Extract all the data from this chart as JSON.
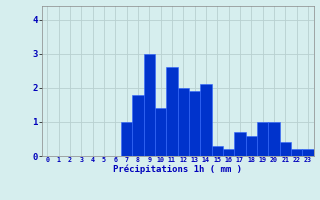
{
  "categories": [
    0,
    1,
    2,
    3,
    4,
    5,
    6,
    7,
    8,
    9,
    10,
    11,
    12,
    13,
    14,
    15,
    16,
    17,
    18,
    19,
    20,
    21,
    22,
    23
  ],
  "values": [
    0,
    0,
    0,
    0,
    0,
    0,
    0,
    1.0,
    1.8,
    3.0,
    1.4,
    2.6,
    2.0,
    1.9,
    2.1,
    0.3,
    0.2,
    0.7,
    0.6,
    1.0,
    1.0,
    0.4,
    0.2,
    0.2
  ],
  "bar_color": "#0033cc",
  "bar_edge_color": "#3366ff",
  "background_color": "#d6eeee",
  "grid_color": "#b8d0d0",
  "xlabel": "Précipitations 1h ( mm )",
  "xlabel_color": "#0000bb",
  "tick_color": "#0000bb",
  "axis_color": "#888888",
  "ylim": [
    0,
    4.4
  ],
  "yticks": [
    0,
    1,
    2,
    3,
    4
  ],
  "xlim": [
    -0.5,
    23.5
  ]
}
